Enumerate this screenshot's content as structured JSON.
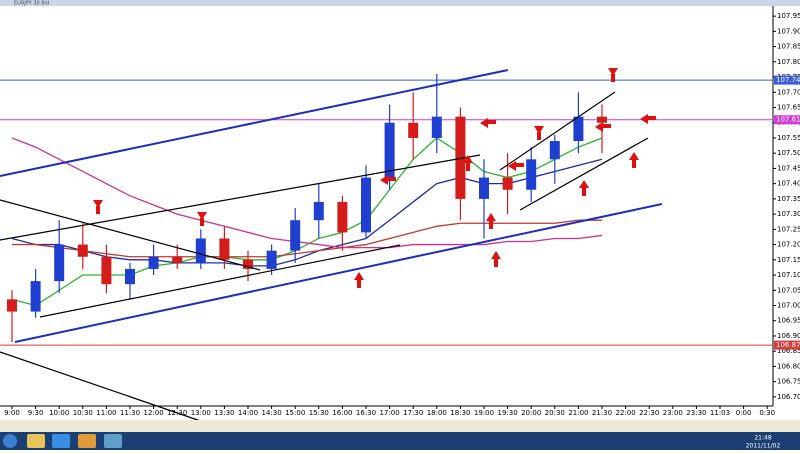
{
  "window": {
    "title": "EURJPY 30 Bid"
  },
  "taskbar": {
    "time": "21:48",
    "date": "2011/11/02"
  },
  "chart_data": {
    "type": "candlestick",
    "categories": [
      "9:00",
      "9:30",
      "10:00",
      "10:30",
      "11:00",
      "11:30",
      "12:00",
      "12:30",
      "13:00",
      "13:30",
      "14:00",
      "14:30",
      "15:00",
      "15:30",
      "16:00",
      "16:30",
      "17:00",
      "17:30",
      "18:00",
      "18:30",
      "19:00",
      "19:30",
      "20:00",
      "20:30",
      "21:00",
      "21:30",
      "22:00",
      "22:30",
      "23:00",
      "23:30",
      "11:03",
      "0:00",
      "0:30"
    ],
    "open": [
      107.02,
      106.98,
      107.08,
      107.2,
      107.16,
      107.07,
      107.12,
      107.16,
      107.14,
      107.22,
      107.15,
      107.12,
      107.18,
      107.28,
      107.34,
      107.24,
      107.42,
      107.6,
      107.55,
      107.62,
      107.35,
      107.42,
      107.38,
      107.48,
      107.54,
      107.62,
      null,
      null,
      null,
      null,
      null,
      null,
      null
    ],
    "high": [
      107.05,
      107.12,
      107.28,
      107.27,
      107.2,
      107.14,
      107.2,
      107.2,
      107.25,
      107.26,
      107.18,
      107.2,
      107.32,
      107.4,
      107.36,
      107.46,
      107.66,
      107.7,
      107.76,
      107.65,
      107.48,
      107.5,
      107.52,
      107.56,
      107.7,
      107.66,
      null,
      null,
      null,
      null,
      null,
      null,
      null
    ],
    "low": [
      106.88,
      106.96,
      107.04,
      107.12,
      107.04,
      107.02,
      107.1,
      107.12,
      107.12,
      107.12,
      107.08,
      107.1,
      107.14,
      107.22,
      107.18,
      107.22,
      107.38,
      107.48,
      107.5,
      107.28,
      107.22,
      107.3,
      107.34,
      107.4,
      107.5,
      107.5,
      null,
      null,
      null,
      null,
      null,
      null,
      null
    ],
    "close": [
      106.98,
      107.08,
      107.2,
      107.16,
      107.07,
      107.12,
      107.16,
      107.14,
      107.22,
      107.15,
      107.12,
      107.18,
      107.28,
      107.34,
      107.24,
      107.42,
      107.6,
      107.55,
      107.62,
      107.35,
      107.42,
      107.38,
      107.48,
      107.54,
      107.62,
      107.6,
      null,
      null,
      null,
      null,
      null,
      null,
      null
    ],
    "up_color": "#1f3fd0",
    "down_color": "#d41c1c",
    "overlays": [
      {
        "color": "#2bb52b",
        "values": [
          107.02,
          107.0,
          107.05,
          107.1,
          107.1,
          107.1,
          107.13,
          107.14,
          107.16,
          107.16,
          107.15,
          107.15,
          107.18,
          107.22,
          107.24,
          107.28,
          107.38,
          107.48,
          107.55,
          107.5,
          107.44,
          107.42,
          107.44,
          107.48,
          107.52,
          107.55,
          null,
          null,
          null,
          null,
          null,
          null,
          null
        ]
      },
      {
        "color": "#1a2fa8",
        "values": [
          107.22,
          107.2,
          107.2,
          107.18,
          107.16,
          107.15,
          107.15,
          107.14,
          107.14,
          107.14,
          107.13,
          107.13,
          107.15,
          107.18,
          107.2,
          107.22,
          107.28,
          107.34,
          107.4,
          107.42,
          107.4,
          107.4,
          107.42,
          107.44,
          107.46,
          107.48,
          null,
          null,
          null,
          null,
          null,
          null,
          null
        ]
      },
      {
        "color": "#c0392b",
        "values": [
          107.2,
          107.2,
          107.19,
          107.18,
          107.17,
          107.16,
          107.16,
          107.16,
          107.16,
          107.16,
          107.16,
          107.16,
          107.17,
          107.18,
          107.19,
          107.2,
          107.22,
          107.24,
          107.26,
          107.27,
          107.27,
          107.27,
          107.27,
          107.27,
          107.28,
          107.28,
          null,
          null,
          null,
          null,
          null,
          null,
          null
        ]
      },
      {
        "color": "#d0308a",
        "values": [
          107.55,
          107.52,
          107.48,
          107.44,
          107.4,
          107.36,
          107.33,
          107.3,
          107.28,
          107.26,
          107.24,
          107.22,
          107.21,
          107.2,
          107.19,
          107.19,
          107.19,
          107.2,
          107.2,
          107.2,
          107.2,
          107.21,
          107.21,
          107.22,
          107.22,
          107.23,
          null,
          null,
          null,
          null,
          null,
          null,
          null
        ]
      }
    ],
    "levels": [
      {
        "value": 107.74,
        "label": "107.74",
        "color": "#3b5bdb"
      },
      {
        "value": 107.61,
        "label": "107.61",
        "color": "#d63ad6"
      },
      {
        "value": 106.87,
        "label": "106.87",
        "color": "#d63a3a"
      }
    ],
    "ylim": [
      106.67,
      107.98
    ],
    "yticks": [
      {
        "value": 107.95,
        "label": "107.95"
      },
      {
        "value": 107.9,
        "label": "107.90"
      },
      {
        "value": 107.85,
        "label": "107.85"
      },
      {
        "value": 107.8,
        "label": "107.80"
      },
      {
        "value": 107.75,
        "label": "107.75"
      },
      {
        "value": 107.7,
        "label": "107.70"
      },
      {
        "value": 107.65,
        "label": "107.65"
      },
      {
        "value": 107.6,
        "label": "107.60"
      },
      {
        "value": 107.55,
        "label": "107.55"
      },
      {
        "value": 107.5,
        "label": "107.50"
      },
      {
        "value": 107.45,
        "label": "107.45"
      },
      {
        "value": 107.4,
        "label": "107.40"
      },
      {
        "value": 107.35,
        "label": "107.35"
      },
      {
        "value": 107.3,
        "label": "107.30"
      },
      {
        "value": 107.25,
        "label": "107.25"
      },
      {
        "value": 107.2,
        "label": "107.20"
      },
      {
        "value": 107.15,
        "label": "107.15"
      },
      {
        "value": 107.1,
        "label": "107.10"
      },
      {
        "value": 107.05,
        "label": "107.05"
      },
      {
        "value": 107.0,
        "label": "107.00"
      },
      {
        "value": 106.95,
        "label": "106.95"
      },
      {
        "value": 106.9,
        "label": "106.90"
      },
      {
        "value": 106.85,
        "label": "106.85"
      },
      {
        "value": 106.8,
        "label": "106.80"
      },
      {
        "value": 106.75,
        "label": "106.75"
      },
      {
        "value": 106.7,
        "label": "106.70"
      }
    ]
  }
}
